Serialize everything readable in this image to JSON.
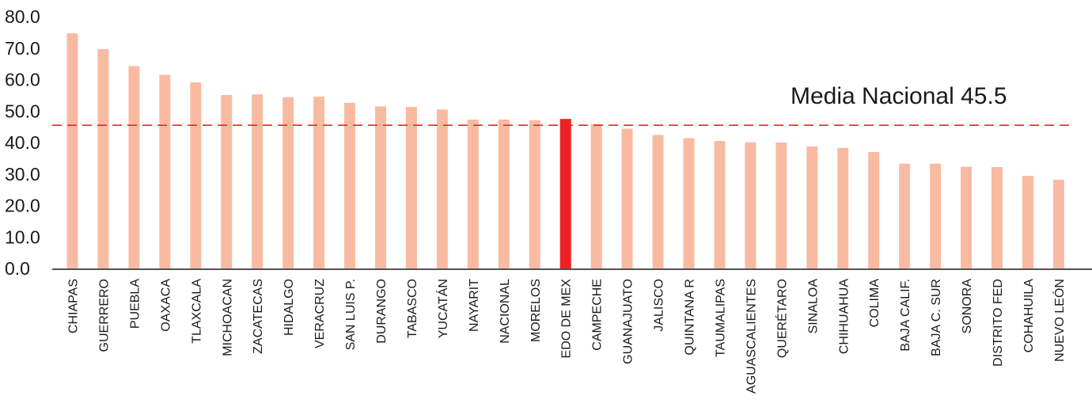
{
  "chart_data": {
    "type": "bar",
    "categories": [
      "CHIAPAS",
      "GUERRERO",
      "PUEBLA",
      "OAXACA",
      "TLAXCALA",
      "MICHOACAN",
      "ZACATECAS",
      "HIDALGO",
      "VERACRUZ",
      "SAN LUIS P.",
      "DURANGO",
      "TABASCO",
      "YUCATÁN",
      "NAYARIT",
      "NACIONAL",
      "MORELOS",
      "EDO DE MEX",
      "CAMPECHE",
      "GUANAJUATO",
      "JALISCO",
      "QUINTANA R",
      "TAUMALIPAS",
      "AGUASCALIENTES",
      "QUERÉTARO",
      "SINALOA",
      "CHIHUAHUA",
      "COLIMA",
      "BAJA CALIF.",
      "BAJA C. SUR",
      "SONORA",
      "DISTRITO FED",
      "COHAHUILA",
      "NUEVO LEÓN"
    ],
    "values": [
      74.7,
      69.7,
      64.3,
      61.5,
      59.1,
      55.1,
      55.3,
      54.4,
      54.6,
      52.6,
      51.5,
      51.3,
      50.5,
      47.3,
      47.3,
      47.1,
      47.5,
      45.9,
      44.4,
      42.4,
      41.4,
      40.5,
      40.1,
      40.0,
      38.8,
      38.3,
      37.0,
      33.3,
      33.3,
      32.3,
      32.2,
      29.4,
      28.2
    ],
    "highlight_category": "EDO DE MEX",
    "yticks": [
      "0.0",
      "10.0",
      "20.0",
      "30.0",
      "40.0",
      "50.0",
      "60.0",
      "70.0",
      "80.0"
    ],
    "ylim": [
      0,
      80
    ],
    "reference_line": {
      "value": 45.5,
      "label": "Media Nacional 45.5"
    },
    "title": "",
    "xlabel": "",
    "ylabel": "",
    "grid": false,
    "colors": {
      "bar": "#f8bba2",
      "highlight": "#ee2024",
      "reference": "#e4262b",
      "axis": "#1a1a1a"
    }
  }
}
